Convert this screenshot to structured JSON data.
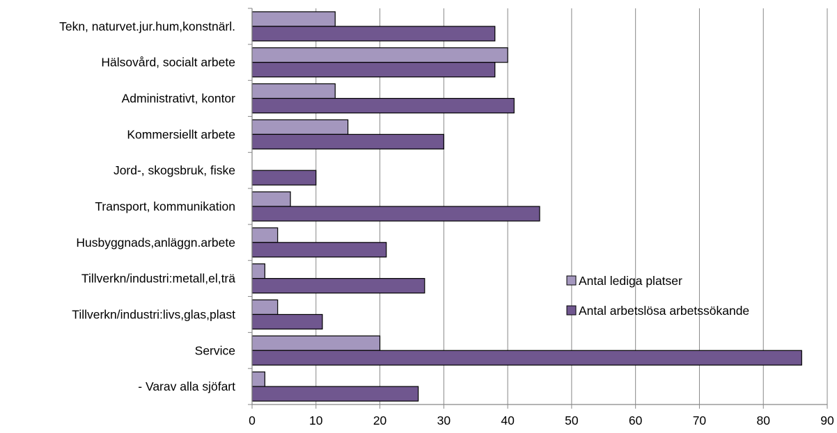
{
  "chart_data": {
    "type": "bar",
    "orientation": "horizontal",
    "title": "",
    "xlabel": "",
    "ylabel": "",
    "xlim": [
      0,
      90
    ],
    "xticks": [
      0,
      10,
      20,
      30,
      40,
      50,
      60,
      70,
      80,
      90
    ],
    "grid": "vertical",
    "legend_position": "right",
    "categories": [
      "Tekn, naturvet.jur.hum,konstnärl.",
      "Hälsovård, socialt arbete",
      "Administrativt, kontor",
      "Kommersiellt arbete",
      "Jord-, skogsbruk, fiske",
      "Transport, kommunikation",
      "Husbyggnads,anläggn.arbete",
      "Tillverkn/industri:metall,el,trä",
      "Tillverkn/industri:livs,glas,plast",
      "Service",
      "- Varav alla sjöfart"
    ],
    "series": [
      {
        "name": "Antal lediga platser",
        "color": "#a497be",
        "values": [
          13,
          40,
          13,
          15,
          0,
          6,
          4,
          2,
          4,
          20,
          2
        ]
      },
      {
        "name": "Antal arbetslösa arbetssökande",
        "color": "#70578f",
        "values": [
          38,
          38,
          41,
          30,
          10,
          45,
          21,
          27,
          11,
          86,
          26
        ]
      }
    ]
  }
}
